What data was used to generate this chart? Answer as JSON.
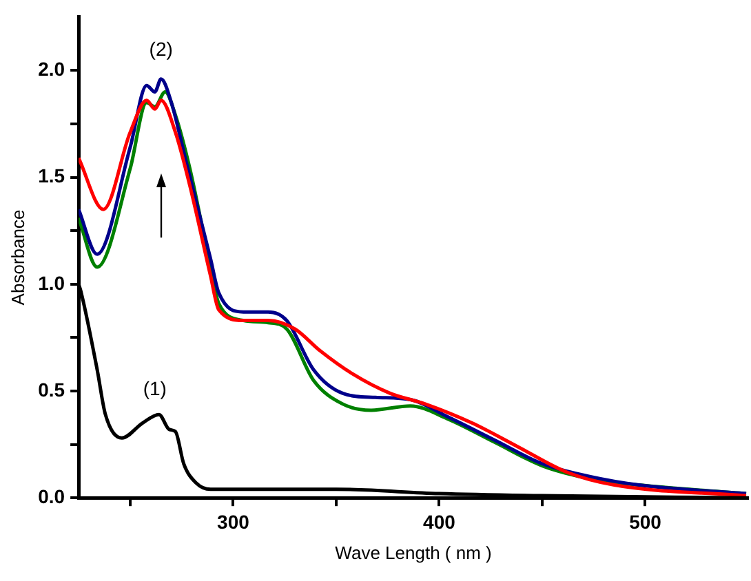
{
  "chart_data": {
    "type": "line",
    "xlabel": "Wave Length ( nm )",
    "ylabel": "Absorbance",
    "xlim": [
      225,
      550
    ],
    "ylim": [
      0,
      2.25
    ],
    "xticks": [
      {
        "value": 250,
        "label": null
      },
      300,
      {
        "value": 350,
        "label": null
      },
      400,
      {
        "value": 450,
        "label": null
      },
      500
    ],
    "yticks": [
      {
        "value": 0,
        "label": "0.0"
      },
      {
        "value": 0.25,
        "label": null
      },
      {
        "value": 0.5,
        "label": "0.5"
      },
      {
        "value": 0.75,
        "label": null
      },
      {
        "value": 1,
        "label": "1.0"
      },
      {
        "value": 1.25,
        "label": null
      },
      {
        "value": 1.5,
        "label": "1.5"
      },
      {
        "value": 1.75,
        "label": null
      },
      {
        "value": 2,
        "label": "2.0"
      }
    ],
    "grid": false,
    "legend": false,
    "marker": "none",
    "line_style": "solid",
    "annotations": [
      "(1)",
      "(2)"
    ],
    "series": [
      {
        "color": "#000000",
        "x": [
          225,
          226,
          234,
          238,
          246,
          256,
          264,
          269,
          272,
          276,
          282,
          289,
          300,
          350,
          400,
          450,
          550
        ],
        "values": [
          1.0,
          0.97,
          0.6,
          0.39,
          0.28,
          0.35,
          0.39,
          0.32,
          0.31,
          0.16,
          0.07,
          0.04,
          0.04,
          0.04,
          0.02,
          0.01,
          0.0
        ]
      },
      {
        "color": "#ff0000",
        "x": [
          225,
          237,
          250,
          258,
          262,
          265,
          272,
          279,
          289,
          293,
          305,
          317,
          330,
          342,
          358,
          376,
          393,
          416,
          438,
          462,
          485,
          549
        ],
        "values": [
          1.59,
          1.35,
          1.71,
          1.86,
          1.82,
          1.86,
          1.71,
          1.46,
          1.04,
          0.88,
          0.83,
          0.83,
          0.79,
          0.69,
          0.58,
          0.49,
          0.44,
          0.35,
          0.24,
          0.12,
          0.06,
          0.01
        ]
      },
      {
        "color": "#00008b",
        "x": [
          225,
          234,
          250,
          258,
          262,
          265,
          270,
          277,
          289,
          293,
          305,
          317,
          326,
          339,
          353,
          369,
          386,
          404,
          427,
          450,
          473,
          497,
          549
        ],
        "values": [
          1.35,
          1.14,
          1.64,
          1.93,
          1.9,
          1.96,
          1.85,
          1.58,
          1.12,
          0.96,
          0.87,
          0.87,
          0.83,
          0.6,
          0.49,
          0.47,
          0.46,
          0.38,
          0.27,
          0.16,
          0.1,
          0.06,
          0.02
        ]
      },
      {
        "color": "#008000",
        "x": [
          225,
          234,
          250,
          258,
          262,
          267,
          272,
          279,
          289,
          293,
          305,
          317,
          326,
          339,
          353,
          367,
          386,
          404,
          427,
          450,
          473,
          497,
          549
        ],
        "values": [
          1.31,
          1.08,
          1.54,
          1.85,
          1.83,
          1.9,
          1.79,
          1.54,
          1.08,
          0.91,
          0.83,
          0.82,
          0.79,
          0.55,
          0.44,
          0.41,
          0.43,
          0.37,
          0.26,
          0.15,
          0.09,
          0.06,
          0.02
        ]
      }
    ]
  }
}
